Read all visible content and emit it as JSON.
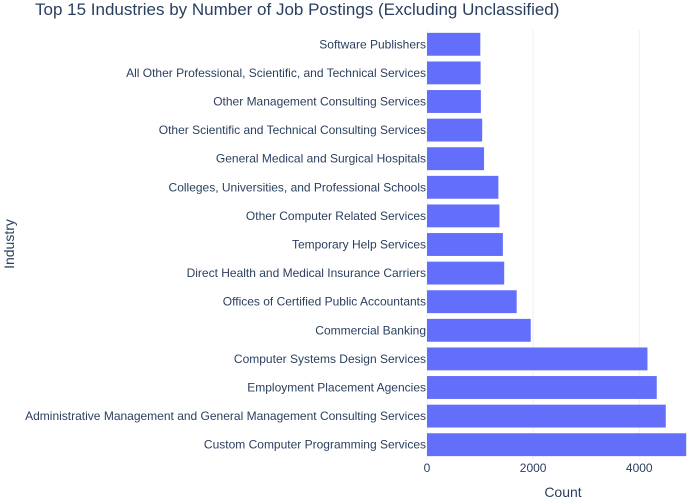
{
  "chart_data": {
    "type": "bar",
    "orientation": "horizontal",
    "title": "Top 15 Industries by Number of Job Postings (Excluding Unclassified)",
    "xlabel": "Count",
    "ylabel": "Industry",
    "xlim": [
      0,
      4900
    ],
    "xticks": [
      0,
      2000,
      4000
    ],
    "grid": true,
    "bar_color": "#636efa",
    "categories": [
      "Software Publishers",
      "All Other Professional, Scientific, and Technical Services",
      "Other Management Consulting Services",
      "Other Scientific and Technical Consulting Services",
      "General Medical and Surgical Hospitals",
      "Colleges, Universities, and Professional Schools",
      "Other Computer Related Services",
      "Temporary Help Services",
      "Direct Health and Medical Insurance Carriers",
      "Offices of Certified Public Accountants",
      "Commercial Banking",
      "Computer Systems Design Services",
      "Employment Placement Agencies",
      "Administrative Management and General Management Consulting Services",
      "Custom Computer Programming Services"
    ],
    "values": [
      1005,
      1010,
      1015,
      1040,
      1075,
      1345,
      1365,
      1430,
      1455,
      1690,
      1955,
      4155,
      4330,
      4500,
      4885
    ]
  }
}
